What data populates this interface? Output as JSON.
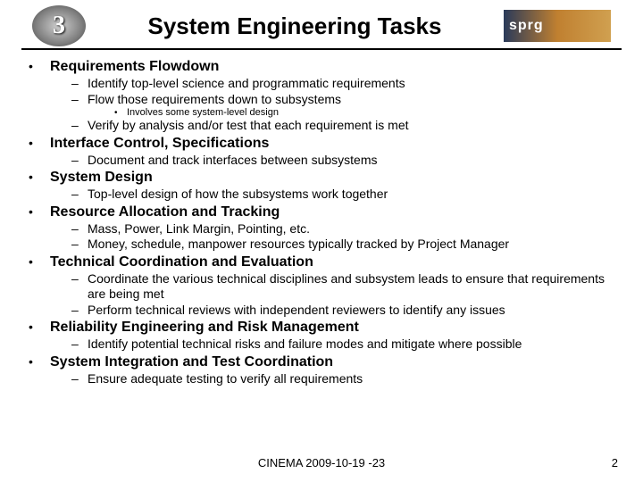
{
  "header": {
    "logo_left_text": "3",
    "title": "System Engineering Tasks",
    "logo_right_text": "sprg"
  },
  "sections": [
    {
      "title": "Requirements Flowdown",
      "subs": [
        {
          "text": "Identify top-level science and programmatic requirements"
        },
        {
          "text": "Flow those requirements down to subsystems",
          "subsubs": [
            "Involves some system-level design"
          ]
        },
        {
          "text": "Verify by analysis and/or test that each requirement is met"
        }
      ]
    },
    {
      "title": "Interface Control, Specifications",
      "subs": [
        {
          "text": "Document and track interfaces between subsystems"
        }
      ]
    },
    {
      "title": "System Design",
      "subs": [
        {
          "text": "Top-level design of how the subsystems work together"
        }
      ]
    },
    {
      "title": "Resource Allocation and Tracking",
      "subs": [
        {
          "text": "Mass, Power, Link Margin, Pointing, etc."
        },
        {
          "text": "Money, schedule, manpower resources typically tracked by Project Manager"
        }
      ]
    },
    {
      "title": "Technical Coordination and Evaluation",
      "subs": [
        {
          "text": "Coordinate the various technical disciplines and subsystem leads to ensure that requirements are being met"
        },
        {
          "text": "Perform technical reviews with independent reviewers to identify any issues"
        }
      ]
    },
    {
      "title": "Reliability Engineering and Risk Management",
      "subs": [
        {
          "text": "Identify potential technical risks and failure modes and mitigate where possible"
        }
      ]
    },
    {
      "title": "System Integration and Test Coordination",
      "subs": [
        {
          "text": "Ensure adequate testing to verify all requirements"
        }
      ]
    }
  ],
  "footer": {
    "text": "CINEMA 2009-10-19 -23",
    "page": "2"
  }
}
